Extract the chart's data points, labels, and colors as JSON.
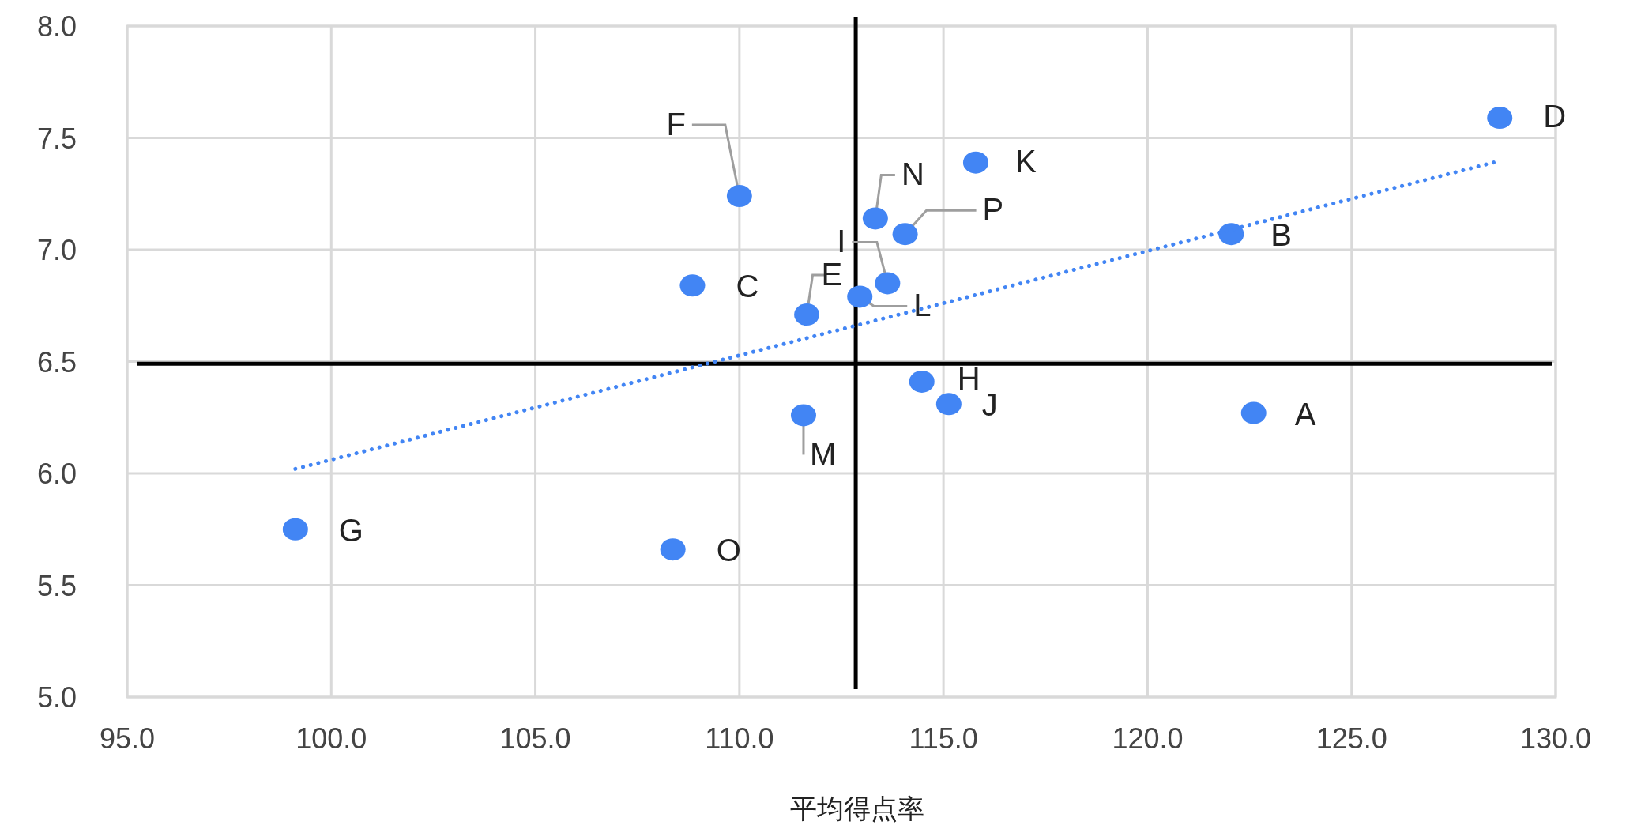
{
  "chart_data": {
    "type": "scatter",
    "xlabel": "平均得点率",
    "xlim": [
      95,
      130
    ],
    "ylim": [
      5,
      8
    ],
    "xticks": [
      {
        "value": 95,
        "label": "95.0"
      },
      {
        "value": 100,
        "label": "100.0"
      },
      {
        "value": 105,
        "label": "105.0"
      },
      {
        "value": 110,
        "label": "110.0"
      },
      {
        "value": 115,
        "label": "115.0"
      },
      {
        "value": 120,
        "label": "120.0"
      },
      {
        "value": 125,
        "label": "125.0"
      },
      {
        "value": 130,
        "label": "130.0"
      }
    ],
    "yticks": [
      {
        "value": 5,
        "label": "5.0"
      },
      {
        "value": 5.5,
        "label": "5.5"
      },
      {
        "value": 6,
        "label": "6.0"
      },
      {
        "value": 6.5,
        "label": "6.5"
      },
      {
        "value": 7,
        "label": "7.0"
      },
      {
        "value": 7.5,
        "label": "7.5"
      },
      {
        "value": 8,
        "label": "8.0"
      }
    ],
    "grid": true,
    "series": [
      {
        "color": "#4285f4",
        "marker": "circle",
        "x": [
          122.6,
          122.05,
          108.85,
          128.63,
          111.65,
          110.0,
          99.12,
          114.47,
          113.63,
          115.13,
          115.79,
          112.95,
          111.57,
          113.33,
          108.37,
          114.06
        ],
        "values": [
          6.27,
          7.07,
          6.84,
          7.59,
          6.71,
          7.24,
          5.75,
          6.41,
          6.85,
          6.31,
          7.39,
          6.79,
          6.26,
          7.14,
          5.66,
          7.07
        ]
      },
      {
        "type": "line",
        "color": "#4285f4",
        "line_style": "dotted",
        "marker": "none",
        "x": [
          99.12,
          128.48
        ],
        "values": [
          6.02,
          7.39
        ]
      }
    ],
    "ref_lines": [
      {
        "axis": "x",
        "value": 112.85,
        "color": "#000000"
      },
      {
        "axis": "y",
        "value": 6.49,
        "color": "#000000"
      }
    ],
    "annotations": [
      {
        "text": "A",
        "x": 122.6,
        "y": 6.27
      },
      {
        "text": "B",
        "x": 122.05,
        "y": 7.07
      },
      {
        "text": "C",
        "x": 108.85,
        "y": 6.84
      },
      {
        "text": "D",
        "x": 128.63,
        "y": 7.59
      },
      {
        "text": "E",
        "x": 111.65,
        "y": 6.71
      },
      {
        "text": "F",
        "x": 110.0,
        "y": 7.24
      },
      {
        "text": "G",
        "x": 99.12,
        "y": 5.75
      },
      {
        "text": "H",
        "x": 114.47,
        "y": 6.41
      },
      {
        "text": "I",
        "x": 113.63,
        "y": 6.85
      },
      {
        "text": "J",
        "x": 115.13,
        "y": 6.31
      },
      {
        "text": "K",
        "x": 115.79,
        "y": 7.39
      },
      {
        "text": "L",
        "x": 112.95,
        "y": 6.79
      },
      {
        "text": "M",
        "x": 111.57,
        "y": 6.26
      },
      {
        "text": "N",
        "x": 113.33,
        "y": 7.14
      },
      {
        "text": "O",
        "x": 108.37,
        "y": 5.66
      },
      {
        "text": "P",
        "x": 114.06,
        "y": 7.07
      }
    ]
  }
}
